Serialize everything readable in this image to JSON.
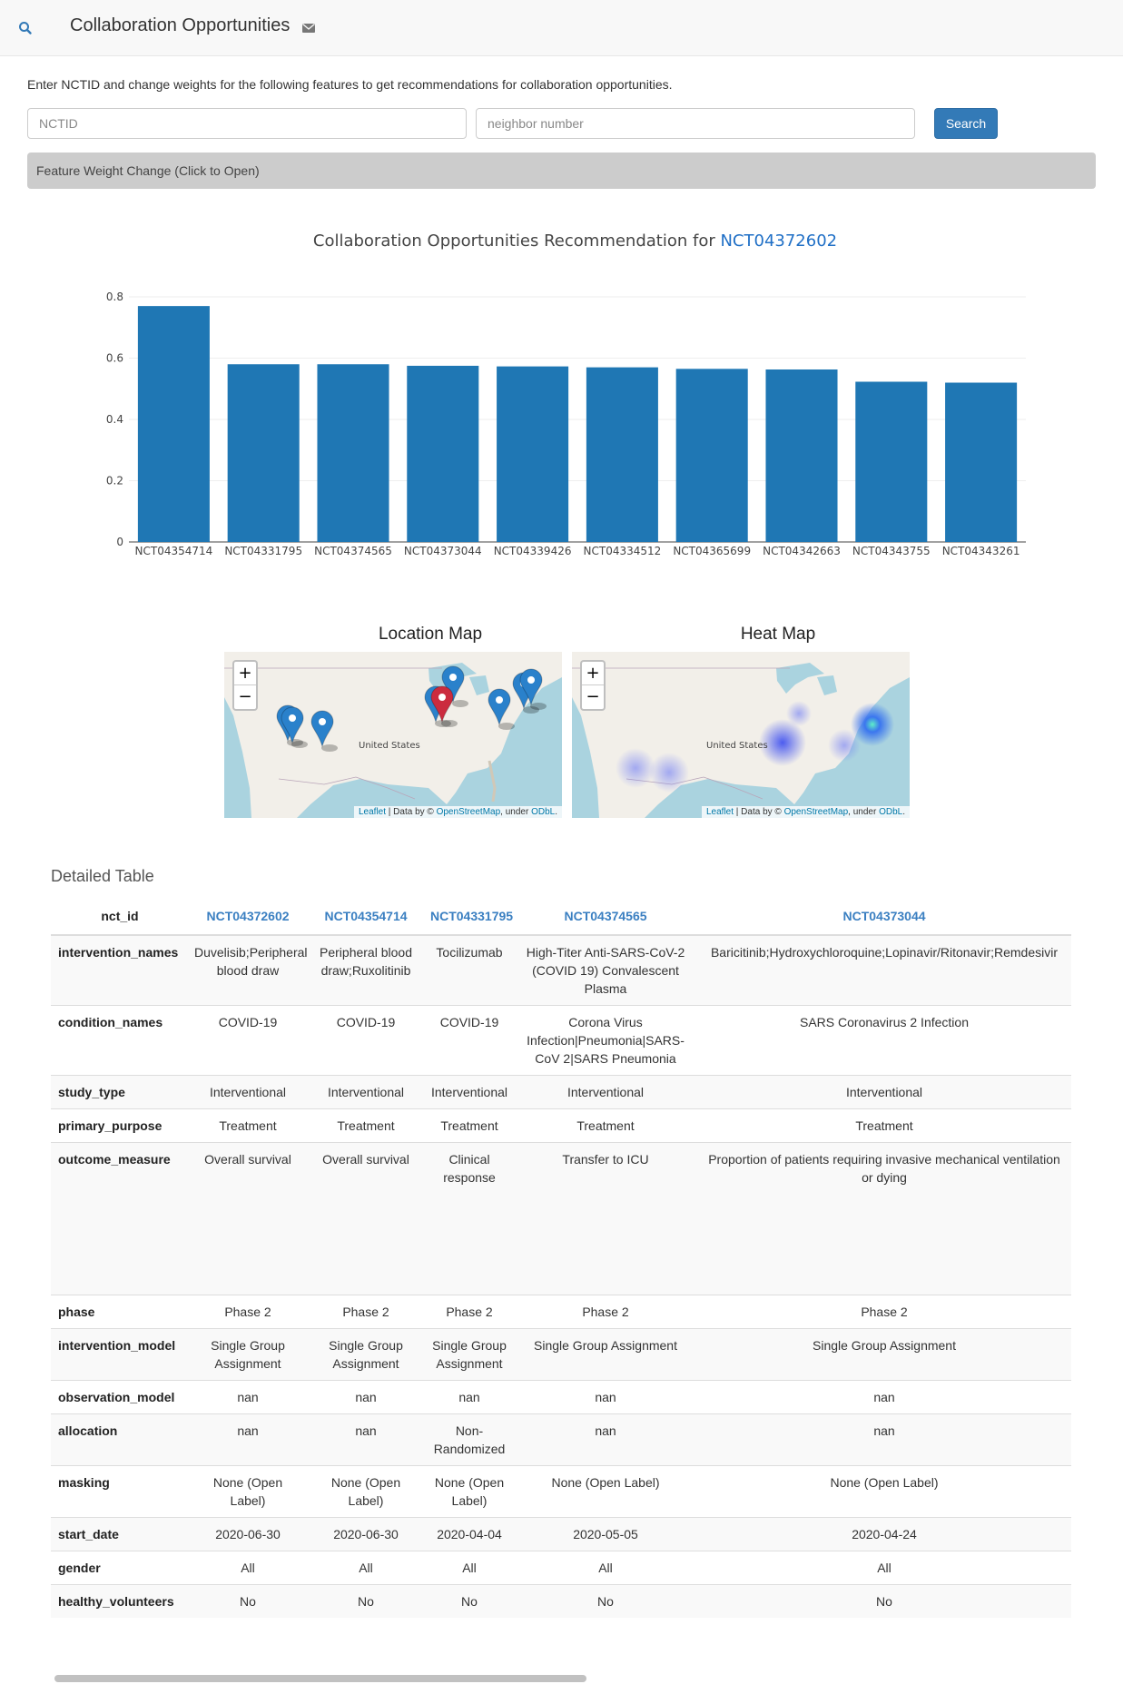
{
  "navbar": {
    "brand": "Collaboration Opportunities",
    "icons": [
      "search-icon",
      "envelope-icon"
    ]
  },
  "intro": "Enter NCTID and change weights for the following features to get recommendations for collaboration opportunities.",
  "form": {
    "nctid_placeholder": "NCTID",
    "neighbor_placeholder": "neighbor number",
    "search_label": "Search",
    "feature_weight_label": "Feature Weight Change (Click to Open)"
  },
  "chart_title": {
    "prefix": "Collaboration Opportunities Recommendation for ",
    "nct_id": "NCT04372602"
  },
  "chart_data": {
    "type": "bar",
    "categories": [
      "NCT04354714",
      "NCT04331795",
      "NCT04374565",
      "NCT04373044",
      "NCT04339426",
      "NCT04334512",
      "NCT04365699",
      "NCT04342663",
      "NCT04343755",
      "NCT04343261"
    ],
    "values": [
      0.77,
      0.58,
      0.58,
      0.575,
      0.573,
      0.57,
      0.565,
      0.563,
      0.523,
      0.52
    ],
    "yticks": [
      "0",
      "0.2",
      "0.4",
      "0.6",
      "0.8"
    ],
    "ylim": [
      0,
      0.8
    ],
    "color": "#1f77b4",
    "grid": true
  },
  "maps": {
    "location_title": "Location Map",
    "heat_title": "Heat Map",
    "country_label": "United States",
    "zoom_in": "+",
    "zoom_out": "−",
    "attribution": {
      "leaflet": "Leaflet",
      "data_by": " | Data by © ",
      "osm": "OpenStreetMap",
      "under": ", under ",
      "odbl": "ODbL",
      "period": "."
    },
    "marker_color": "#2a81cb",
    "highlight_marker_color": "#cb2b3e"
  },
  "table": {
    "title": "Detailed Table",
    "header": [
      "nct_id",
      "NCT04372602",
      "NCT04354714",
      "NCT04331795",
      "NCT04374565",
      "NCT04373044"
    ],
    "rows": [
      [
        "intervention_names",
        "Duvelisib;Peripheral blood draw",
        "Peripheral blood draw;Ruxolitinib",
        "Tocilizumab",
        "High-Titer Anti-SARS-CoV-2 (COVID 19) Convalescent Plasma",
        "Baricitinib;Hydroxychloroquine;Lopinavir/Ritonavir;Remdesivir"
      ],
      [
        "condition_names",
        "COVID-19",
        "COVID-19",
        "COVID-19",
        "Corona Virus Infection|Pneumonia|SARS-CoV 2|SARS Pneumonia",
        "SARS Coronavirus 2 Infection"
      ],
      [
        "study_type",
        "Interventional",
        "Interventional",
        "Interventional",
        "Interventional",
        "Interventional"
      ],
      [
        "primary_purpose",
        "Treatment",
        "Treatment",
        "Treatment",
        "Treatment",
        "Treatment"
      ],
      [
        "outcome_measure",
        "Overall survival",
        "Overall survival",
        "Clinical response",
        "Transfer to ICU",
        "Proportion of patients requiring invasive mechanical ventilation or dying"
      ],
      [
        "phase",
        "Phase 2",
        "Phase 2",
        "Phase 2",
        "Phase 2",
        "Phase 2"
      ],
      [
        "intervention_model",
        "Single Group Assignment",
        "Single Group Assignment",
        "Single Group Assignment",
        "Single Group Assignment",
        "Single Group Assignment"
      ],
      [
        "observation_model",
        "nan",
        "nan",
        "nan",
        "nan",
        "nan"
      ],
      [
        "allocation",
        "nan",
        "nan",
        "Non-Randomized",
        "nan",
        "nan"
      ],
      [
        "masking",
        "None (Open Label)",
        "None (Open Label)",
        "None (Open Label)",
        "None (Open Label)",
        "None (Open Label)"
      ],
      [
        "start_date",
        "2020-06-30",
        "2020-06-30",
        "2020-04-04",
        "2020-05-05",
        "2020-04-24"
      ],
      [
        "gender",
        "All",
        "All",
        "All",
        "All",
        "All"
      ],
      [
        "healthy_volunteers",
        "No",
        "No",
        "No",
        "No",
        "No"
      ]
    ]
  }
}
